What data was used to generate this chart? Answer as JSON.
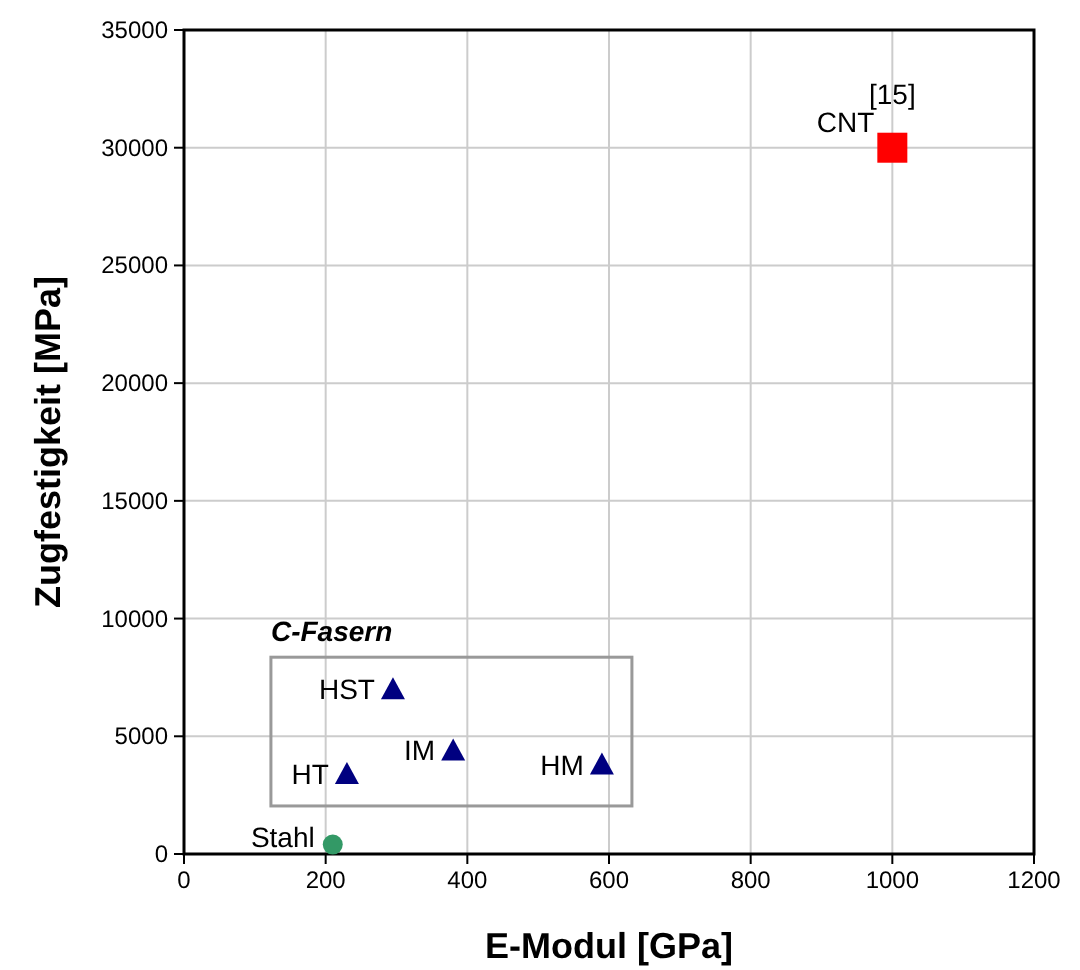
{
  "chart_data": {
    "type": "scatter",
    "xlabel": "E-Modul [GPa]",
    "ylabel": "Zugfestigkeit [MPa]",
    "xlim": [
      0,
      1200
    ],
    "xticks": [
      0,
      200,
      400,
      600,
      800,
      1000,
      1200
    ],
    "ylim": [
      0,
      35000
    ],
    "yticks": [
      0,
      5000,
      10000,
      15000,
      20000,
      25000,
      30000,
      35000
    ],
    "grid": true,
    "series": [
      {
        "name": "Stahl",
        "color": "#339966",
        "marker": "circle",
        "x": [
          210
        ],
        "values": [
          400
        ]
      },
      {
        "name": "HT",
        "color": "#000080",
        "marker": "triangle",
        "x": [
          230
        ],
        "values": [
          3400
        ]
      },
      {
        "name": "HST",
        "color": "#000080",
        "marker": "triangle",
        "x": [
          295
        ],
        "values": [
          7000
        ]
      },
      {
        "name": "IM",
        "color": "#000080",
        "marker": "triangle",
        "x": [
          380
        ],
        "values": [
          4400
        ]
      },
      {
        "name": "HM",
        "color": "#000080",
        "marker": "triangle",
        "x": [
          590
        ],
        "values": [
          3800
        ]
      },
      {
        "name": "CNT",
        "color": "#ff0000",
        "marker": "square",
        "x": [
          1000
        ],
        "values": [
          30000
        ]
      }
    ],
    "annotations": [
      "C-Fasern",
      "[15]"
    ]
  }
}
